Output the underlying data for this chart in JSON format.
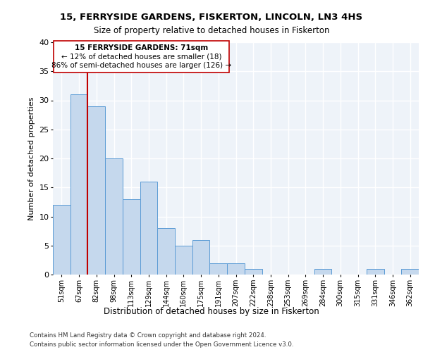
{
  "title1": "15, FERRYSIDE GARDENS, FISKERTON, LINCOLN, LN3 4HS",
  "title2": "Size of property relative to detached houses in Fiskerton",
  "xlabel": "Distribution of detached houses by size in Fiskerton",
  "ylabel": "Number of detached properties",
  "categories": [
    "51sqm",
    "67sqm",
    "82sqm",
    "98sqm",
    "113sqm",
    "129sqm",
    "144sqm",
    "160sqm",
    "175sqm",
    "191sqm",
    "207sqm",
    "222sqm",
    "238sqm",
    "253sqm",
    "269sqm",
    "284sqm",
    "300sqm",
    "315sqm",
    "331sqm",
    "346sqm",
    "362sqm"
  ],
  "values": [
    12,
    31,
    29,
    20,
    13,
    16,
    8,
    5,
    6,
    2,
    2,
    1,
    0,
    0,
    0,
    1,
    0,
    0,
    1,
    0,
    1
  ],
  "bar_color": "#c5d8ed",
  "bar_edge_color": "#5b9bd5",
  "annotation_line": "15 FERRYSIDE GARDENS: 71sqm",
  "annotation_text1": "← 12% of detached houses are smaller (18)",
  "annotation_text2": "86% of semi-detached houses are larger (126) →",
  "vline_color": "#c00000",
  "ylim": [
    0,
    40
  ],
  "yticks": [
    0,
    5,
    10,
    15,
    20,
    25,
    30,
    35,
    40
  ],
  "background_color": "#eef3f9",
  "grid_color": "#ffffff",
  "footnote1": "Contains HM Land Registry data © Crown copyright and database right 2024.",
  "footnote2": "Contains public sector information licensed under the Open Government Licence v3.0."
}
